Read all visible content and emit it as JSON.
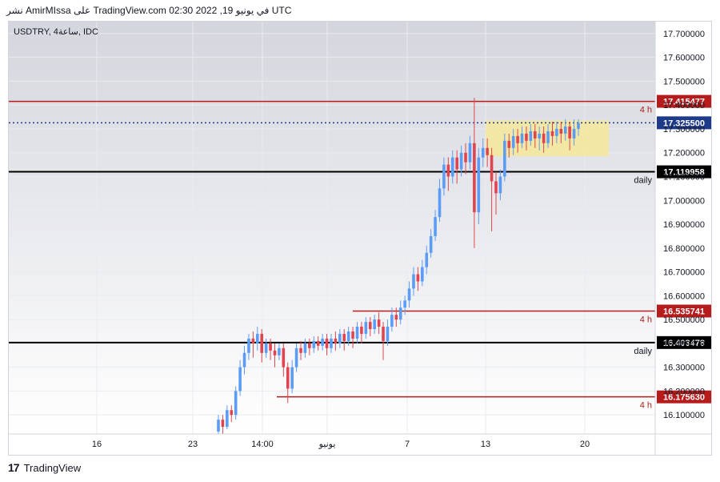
{
  "header": {
    "publisher_line": "نشر AmirMIssa على TradingView.com في يونيو 19, 2022 02:30 UTC"
  },
  "footer": {
    "brand": "TradingView",
    "logo_glyph": "17"
  },
  "colors": {
    "up": "#5b9cf6",
    "down": "#e0454f",
    "resistance": "#b71c1c",
    "daily": "#000000",
    "last_price": "#1e3a8a",
    "zone": "#f6e79a",
    "grid": "#e9ebf0",
    "bg_top": "#d4d6dd",
    "bg_bottom": "#ffffff"
  },
  "chart_data": {
    "type": "candlestick",
    "symbol_label": "USDTRY, 4ساعة, IDC",
    "ylim": [
      16.02,
      17.75
    ],
    "y_ticks": [
      "17.700000",
      "17.600000",
      "17.500000",
      "17.400000",
      "17.300000",
      "17.200000",
      "17.100000",
      "17.000000",
      "16.900000",
      "16.800000",
      "16.700000",
      "16.600000",
      "16.500000",
      "16.400000",
      "16.300000",
      "16.200000",
      "16.100000"
    ],
    "x_ticks": [
      "16",
      "23",
      "14:00",
      "يونيو",
      "7",
      "13",
      "20"
    ],
    "levels": [
      {
        "value": 17.415477,
        "label": "17.415477",
        "tag": "4 h",
        "style": "resistance"
      },
      {
        "value": 17.3255,
        "label": "17.325500",
        "tag": "",
        "style": "last_price"
      },
      {
        "value": 17.119958,
        "label": "17.119958",
        "tag": "daily",
        "style": "daily"
      },
      {
        "value": 16.535741,
        "label": "16.535741",
        "tag": "4 h",
        "style": "resistance"
      },
      {
        "value": 16.403478,
        "label": "16.403478",
        "tag": "daily",
        "style": "daily"
      },
      {
        "value": 16.17563,
        "label": "16.175630",
        "tag": "4 h",
        "style": "resistance"
      }
    ],
    "zone": {
      "low": 17.185,
      "high": 17.335
    },
    "candles": [
      [
        16.03,
        16.08,
        16.02,
        16.1
      ],
      [
        16.08,
        16.05,
        16.02,
        16.1
      ],
      [
        16.05,
        16.12,
        16.04,
        16.14
      ],
      [
        16.12,
        16.1,
        16.07,
        16.14
      ],
      [
        16.1,
        16.2,
        16.08,
        16.22
      ],
      [
        16.2,
        16.3,
        16.18,
        16.33
      ],
      [
        16.3,
        16.36,
        16.27,
        16.39
      ],
      [
        16.36,
        16.42,
        16.33,
        16.44
      ],
      [
        16.42,
        16.4,
        16.34,
        16.45
      ],
      [
        16.4,
        16.44,
        16.37,
        16.47
      ],
      [
        16.44,
        16.36,
        16.32,
        16.46
      ],
      [
        16.36,
        16.4,
        16.34,
        16.42
      ],
      [
        16.4,
        16.37,
        16.33,
        16.42
      ],
      [
        16.37,
        16.35,
        16.3,
        16.4
      ],
      [
        16.35,
        16.38,
        16.33,
        16.4
      ],
      [
        16.38,
        16.3,
        16.26,
        16.4
      ],
      [
        16.3,
        16.21,
        16.15,
        16.32
      ],
      [
        16.21,
        16.3,
        16.19,
        16.33
      ],
      [
        16.3,
        16.38,
        16.28,
        16.4
      ],
      [
        16.38,
        16.36,
        16.33,
        16.41
      ],
      [
        16.36,
        16.4,
        16.34,
        16.42
      ],
      [
        16.4,
        16.38,
        16.35,
        16.42
      ],
      [
        16.38,
        16.41,
        16.36,
        16.43
      ],
      [
        16.41,
        16.39,
        16.37,
        16.43
      ],
      [
        16.39,
        16.42,
        16.37,
        16.44
      ],
      [
        16.42,
        16.38,
        16.35,
        16.44
      ],
      [
        16.38,
        16.42,
        16.36,
        16.44
      ],
      [
        16.42,
        16.4,
        16.37,
        16.45
      ],
      [
        16.4,
        16.44,
        16.38,
        16.46
      ],
      [
        16.44,
        16.41,
        16.37,
        16.46
      ],
      [
        16.41,
        16.45,
        16.39,
        16.47
      ],
      [
        16.45,
        16.42,
        16.38,
        16.47
      ],
      [
        16.42,
        16.47,
        16.4,
        16.49
      ],
      [
        16.47,
        16.44,
        16.4,
        16.49
      ],
      [
        16.44,
        16.49,
        16.42,
        16.51
      ],
      [
        16.49,
        16.46,
        16.43,
        16.51
      ],
      [
        16.46,
        16.5,
        16.44,
        16.52
      ],
      [
        16.5,
        16.47,
        16.44,
        16.53
      ],
      [
        16.47,
        16.41,
        16.33,
        16.49
      ],
      [
        16.41,
        16.47,
        16.39,
        16.5
      ],
      [
        16.47,
        16.52,
        16.45,
        16.55
      ],
      [
        16.52,
        16.5,
        16.47,
        16.55
      ],
      [
        16.5,
        16.55,
        16.48,
        16.58
      ],
      [
        16.55,
        16.58,
        16.52,
        16.6
      ],
      [
        16.58,
        16.63,
        16.55,
        16.66
      ],
      [
        16.63,
        16.69,
        16.6,
        16.72
      ],
      [
        16.69,
        16.66,
        16.62,
        16.72
      ],
      [
        16.66,
        16.72,
        16.64,
        16.75
      ],
      [
        16.72,
        16.78,
        16.69,
        16.81
      ],
      [
        16.78,
        16.85,
        16.76,
        16.88
      ],
      [
        16.85,
        16.93,
        16.83,
        16.96
      ],
      [
        16.93,
        17.05,
        16.91,
        17.09
      ],
      [
        17.05,
        17.15,
        17.02,
        17.18
      ],
      [
        17.15,
        17.1,
        17.04,
        17.18
      ],
      [
        17.1,
        17.18,
        17.07,
        17.21
      ],
      [
        17.18,
        17.13,
        17.07,
        17.21
      ],
      [
        17.13,
        17.2,
        17.1,
        17.23
      ],
      [
        17.2,
        17.16,
        17.11,
        17.24
      ],
      [
        17.16,
        17.24,
        17.13,
        17.27
      ],
      [
        17.24,
        16.95,
        16.8,
        17.43
      ],
      [
        16.95,
        17.18,
        16.9,
        17.22
      ],
      [
        17.18,
        17.22,
        17.14,
        17.26
      ],
      [
        17.22,
        17.19,
        17.14,
        17.26
      ],
      [
        17.19,
        17.08,
        16.87,
        17.22
      ],
      [
        17.08,
        17.03,
        16.94,
        17.12
      ],
      [
        17.03,
        17.1,
        17.0,
        17.13
      ],
      [
        17.1,
        17.25,
        17.08,
        17.28
      ],
      [
        17.25,
        17.22,
        17.18,
        17.28
      ],
      [
        17.22,
        17.27,
        17.19,
        17.3
      ],
      [
        17.27,
        17.24,
        17.2,
        17.3
      ],
      [
        17.24,
        17.28,
        17.22,
        17.31
      ],
      [
        17.28,
        17.25,
        17.21,
        17.31
      ],
      [
        17.25,
        17.29,
        17.23,
        17.32
      ],
      [
        17.29,
        17.26,
        17.22,
        17.32
      ],
      [
        17.26,
        17.28,
        17.21,
        17.31
      ],
      [
        17.28,
        17.24,
        17.2,
        17.31
      ],
      [
        17.24,
        17.29,
        17.22,
        17.32
      ],
      [
        17.29,
        17.27,
        17.23,
        17.33
      ],
      [
        17.27,
        17.3,
        17.24,
        17.33
      ],
      [
        17.3,
        17.28,
        17.24,
        17.33
      ],
      [
        17.28,
        17.31,
        17.25,
        17.34
      ],
      [
        17.31,
        17.26,
        17.21,
        17.33
      ],
      [
        17.26,
        17.3,
        17.23,
        17.34
      ],
      [
        17.3,
        17.325,
        17.27,
        17.34
      ]
    ]
  }
}
